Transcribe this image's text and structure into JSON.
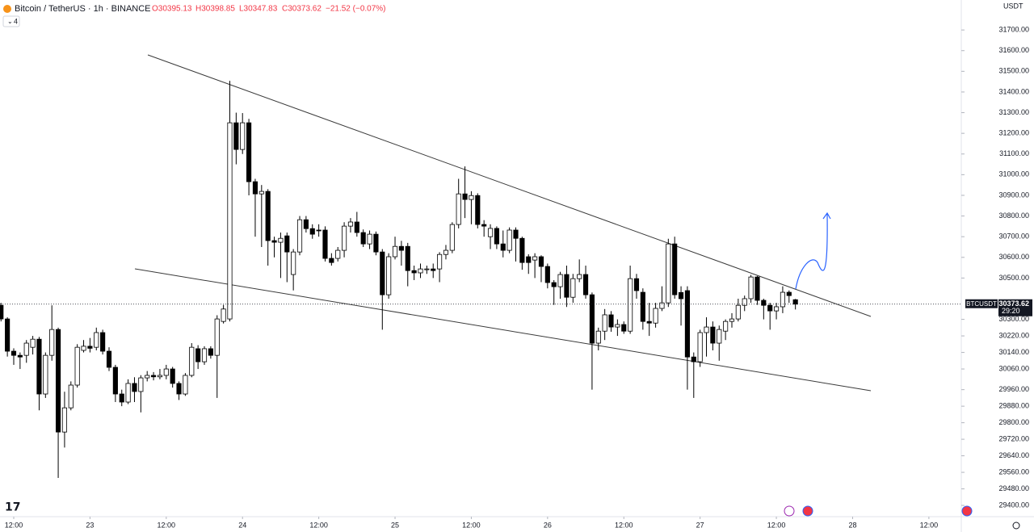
{
  "header": {
    "symbol": "Bitcoin / TetherUS · 1h · BINANCE",
    "open": "O30395.13",
    "high": "H30398.85",
    "low": "L30347.83",
    "close": "C30373.62",
    "change": "−21.52 (−0.07%)",
    "indicators": "4",
    "currency": "USDT",
    "ticker": "BTCUSDT",
    "countdown": "29:20"
  },
  "chart_data": {
    "type": "candlestick",
    "up_color": "#ffffff",
    "down_color": "#000000",
    "outline_color": "#000000",
    "last_price": 30373.62,
    "x": [
      10,
      11,
      12,
      13,
      14,
      15,
      16,
      17,
      18,
      19,
      20,
      21,
      22,
      23,
      24,
      25,
      26,
      27,
      28,
      29,
      30,
      31,
      32,
      33,
      34,
      35,
      36,
      37,
      38,
      39,
      40,
      41,
      42,
      43,
      44,
      45,
      46,
      47,
      48,
      49,
      50,
      51,
      52,
      53,
      54,
      55,
      56,
      57,
      58,
      59,
      60,
      61,
      62,
      63,
      64,
      65,
      66,
      67,
      68,
      69,
      70,
      71,
      72,
      73,
      74,
      75,
      76,
      77,
      78,
      79,
      80,
      81,
      82,
      83,
      84,
      85,
      86,
      87,
      88,
      89,
      90,
      91,
      92,
      93,
      94,
      95,
      96,
      97,
      98,
      99,
      100,
      101,
      102,
      103,
      104,
      105,
      106,
      107,
      108,
      109,
      110,
      111,
      112,
      113,
      114,
      115,
      116,
      117,
      118,
      119,
      120,
      121,
      122,
      123,
      124,
      125,
      126,
      127,
      128,
      129,
      130,
      131,
      132,
      133,
      134,
      135
    ],
    "open": [
      30368,
      30302,
      30146,
      30126,
      30126,
      30165,
      30204,
      29939,
      30126,
      30251,
      29755,
      29872,
      29982,
      30150,
      30170,
      30165,
      30236,
      30146,
      30068,
      29939,
      29900,
      29990,
      29951,
      30017,
      30029,
      30022,
      30029,
      30060,
      29990,
      29939,
      30029,
      30158,
      30095,
      30158,
      30126,
      30290,
      30302,
      31251,
      31122,
      31251,
      30966,
      30907,
      30919,
      30681,
      30673,
      30704,
      30517,
      30626,
      30782,
      30739,
      30732,
      30732,
      30595,
      30595,
      30634,
      30751,
      30771,
      30720,
      30665,
      30712,
      30626,
      30419,
      30603,
      30653,
      30653,
      30536,
      30525,
      30544,
      30544,
      30544,
      30614,
      30634,
      30759,
      30907,
      30880,
      30899,
      30759,
      30700,
      30740,
      30665,
      30634,
      30732,
      30692,
      30603,
      30587,
      30603,
      30556,
      30478,
      30458,
      30517,
      30407,
      30497,
      30517,
      30419,
      30185,
      30243,
      30322,
      30263,
      30275,
      30243,
      30497,
      30431,
      30290,
      30282,
      30353,
      30380,
      30665,
      30430,
      30439,
      30118,
      30095,
      30236,
      30263,
      30185,
      30243,
      30290,
      30302,
      30368,
      30400,
      30505,
      30392,
      30368,
      30341,
      30361,
      30431,
      30395.13
    ],
    "high": [
      30380,
      30310,
      30160,
      30140,
      30200,
      30220,
      30215,
      30140,
      30368,
      30260,
      29950,
      30000,
      30180,
      30200,
      30210,
      30260,
      30250,
      30165,
      30080,
      29960,
      30010,
      30020,
      30030,
      30050,
      30045,
      30060,
      30080,
      30070,
      30000,
      30040,
      30185,
      30175,
      30170,
      30170,
      30320,
      30370,
      31454,
      31300,
      31298,
      31270,
      30980,
      30950,
      30930,
      30700,
      30720,
      30720,
      30640,
      30800,
      30800,
      30760,
      30760,
      30750,
      30620,
      30650,
      30770,
      30790,
      30820,
      30735,
      30730,
      30725,
      30640,
      30620,
      30700,
      30680,
      30670,
      30560,
      30570,
      30560,
      30570,
      30625,
      30660,
      30770,
      30980,
      31040,
      30920,
      30910,
      30780,
      30760,
      30750,
      30730,
      30745,
      30745,
      30700,
      30615,
      30620,
      30610,
      30570,
      30490,
      30530,
      30560,
      30520,
      30590,
      30560,
      30430,
      30260,
      30350,
      30340,
      30300,
      30290,
      30560,
      30520,
      30450,
      30380,
      30380,
      30460,
      30690,
      30700,
      30460,
      30460,
      30140,
      30250,
      30310,
      30290,
      30270,
      30300,
      30330,
      30400,
      30415,
      30515,
      30510,
      30400,
      30380,
      30380,
      30460,
      30440,
      30398.85
    ],
    "low": [
      30290,
      30120,
      30080,
      30060,
      30090,
      30130,
      29860,
      29920,
      30100,
      29533,
      29680,
      29860,
      29970,
      30140,
      30140,
      30150,
      30130,
      30050,
      29900,
      29880,
      29890,
      29900,
      29850,
      30000,
      30005,
      30010,
      30010,
      29970,
      29910,
      29930,
      30020,
      30060,
      30080,
      30110,
      29920,
      30280,
      30290,
      31050,
      31100,
      30900,
      30700,
      30650,
      30560,
      30600,
      30500,
      30480,
      30440,
      30610,
      30720,
      30690,
      30700,
      30580,
      30560,
      30580,
      30600,
      30720,
      30700,
      30650,
      30640,
      30610,
      30250,
      30400,
      30590,
      30560,
      30460,
      30490,
      30500,
      30520,
      30500,
      30480,
      30590,
      30620,
      30740,
      30790,
      30760,
      30740,
      30700,
      30640,
      30640,
      30600,
      30620,
      30580,
      30540,
      30520,
      30500,
      30480,
      30450,
      30370,
      30400,
      30360,
      30380,
      30480,
      30400,
      29960,
      30150,
      30200,
      30240,
      30220,
      30230,
      30230,
      30400,
      30250,
      30220,
      30260,
      30340,
      30360,
      30400,
      30270,
      29960,
      29920,
      30070,
      30120,
      30150,
      30100,
      30200,
      30260,
      30290,
      30340,
      30380,
      30370,
      30300,
      30250,
      30300,
      30330,
      30380,
      30347.83
    ],
    "close": [
      30302,
      30146,
      30126,
      30118,
      30185,
      30204,
      29939,
      30126,
      30251,
      29755,
      29872,
      29982,
      30165,
      30170,
      30160,
      30236,
      30146,
      30068,
      29939,
      29900,
      29990,
      29951,
      30017,
      30029,
      30022,
      30029,
      30060,
      29990,
      29939,
      30029,
      30165,
      30095,
      30158,
      30126,
      30302,
      30350,
      31251,
      31122,
      31251,
      30966,
      30907,
      30919,
      30681,
      30673,
      30692,
      30626,
      30626,
      30782,
      30739,
      30712,
      30730,
      30595,
      30575,
      30634,
      30751,
      30771,
      30720,
      30665,
      30712,
      30626,
      30419,
      30603,
      30653,
      30634,
      30536,
      30525,
      30544,
      30544,
      30536,
      30614,
      30634,
      30759,
      30907,
      30880,
      30899,
      30759,
      30751,
      30740,
      30665,
      30634,
      30732,
      30692,
      30575,
      30575,
      30603,
      30556,
      30478,
      30458,
      30517,
      30407,
      30497,
      30517,
      30419,
      30185,
      30243,
      30322,
      30263,
      30275,
      30243,
      30497,
      30439,
      30290,
      30282,
      30353,
      30380,
      30665,
      30419,
      30400,
      30118,
      30095,
      30236,
      30263,
      30185,
      30251,
      30290,
      30302,
      30368,
      30400,
      30505,
      30392,
      30368,
      30341,
      30361,
      30431,
      30415,
      30373.62
    ],
    "xlim": [
      9.84,
      161.1
    ],
    "xticks": [
      {
        "value": 12,
        "label": "12:00"
      },
      {
        "value": 24,
        "label": "23"
      },
      {
        "value": 36,
        "label": "12:00"
      },
      {
        "value": 48,
        "label": "24"
      },
      {
        "value": 60,
        "label": "12:00"
      },
      {
        "value": 72,
        "label": "25"
      },
      {
        "value": 84,
        "label": "12:00"
      },
      {
        "value": 96,
        "label": "26"
      },
      {
        "value": 108,
        "label": "12:00"
      },
      {
        "value": 120,
        "label": "27"
      },
      {
        "value": 132,
        "label": "12:00"
      },
      {
        "value": 144,
        "label": "28"
      },
      {
        "value": 156,
        "label": "12:00"
      }
    ],
    "ylim": [
      29326,
      31845
    ],
    "yticks": [
      {
        "value": 31700,
        "label": "31700.00"
      },
      {
        "value": 31600,
        "label": "31600.00"
      },
      {
        "value": 31500,
        "label": "31500.00"
      },
      {
        "value": 31400,
        "label": "31400.00"
      },
      {
        "value": 31300,
        "label": "31300.00"
      },
      {
        "value": 31200,
        "label": "31200.00"
      },
      {
        "value": 31100,
        "label": "31100.00"
      },
      {
        "value": 31000,
        "label": "31000.00"
      },
      {
        "value": 30900,
        "label": "30900.00"
      },
      {
        "value": 30800,
        "label": "30800.00"
      },
      {
        "value": 30700,
        "label": "30700.00"
      },
      {
        "value": 30600,
        "label": "30600.00"
      },
      {
        "value": 30500,
        "label": "30500.00"
      },
      {
        "value": 30300,
        "label": "30300.00"
      },
      {
        "value": 30220,
        "label": "30220.00"
      },
      {
        "value": 30140,
        "label": "30140.00"
      },
      {
        "value": 30060,
        "label": "30060.00"
      },
      {
        "value": 29960,
        "label": "29960.00"
      },
      {
        "value": 29880,
        "label": "29880.00"
      },
      {
        "value": 29800,
        "label": "29800.00"
      },
      {
        "value": 29720,
        "label": "29720.00"
      },
      {
        "value": 29640,
        "label": "29640.00"
      },
      {
        "value": 29560,
        "label": "29560.00"
      },
      {
        "value": 29480,
        "label": "29480.00"
      },
      {
        "value": 29400,
        "label": "29400.00"
      }
    ],
    "grid": false
  }
}
